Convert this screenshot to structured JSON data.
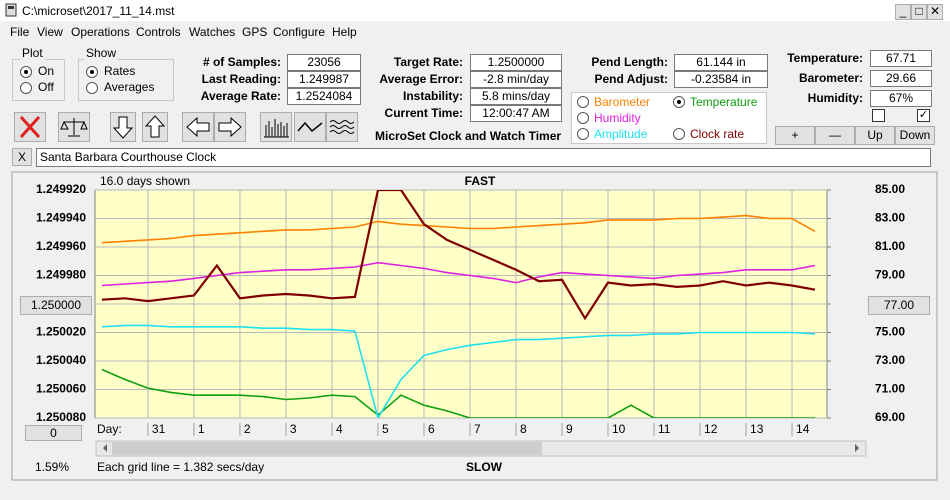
{
  "window": {
    "title": "C:\\microset\\2017_11_14.mst"
  },
  "menu": [
    "File",
    "View",
    "Operations",
    "Controls",
    "Watches",
    "GPS",
    "Configure",
    "Help"
  ],
  "plot_group": {
    "title": "Plot",
    "options": [
      "On",
      "Off"
    ]
  },
  "show_group": {
    "title": "Show",
    "options": [
      "Rates",
      "Averages"
    ]
  },
  "fields": [
    [
      {
        "label": "# of Samples:",
        "value": "23056"
      },
      {
        "label": "Last Reading:",
        "value": "1.249987"
      },
      {
        "label": "Average Rate:",
        "value": "1.2524084"
      }
    ],
    [
      {
        "label": "Target Rate:",
        "value": "1.2500000"
      },
      {
        "label": "Average Error:",
        "value": "-2.8 min/day"
      },
      {
        "label": "Instability:",
        "value": "5.8 mins/day"
      },
      {
        "label": "Current Time:",
        "value": "12:00:47 AM"
      }
    ],
    [
      {
        "label": "Pend Length:",
        "value": "61.144 in"
      },
      {
        "label": "Pend Adjust:",
        "value": "-0.23584 in"
      }
    ],
    [
      {
        "label": "Temperature:",
        "value": "67.71"
      },
      {
        "label": "Barometer:",
        "value": "29.66"
      },
      {
        "label": "Humidity:",
        "value": "67%"
      }
    ]
  ],
  "app_title": "MicroSet Clock and Watch Timer",
  "buttons": [
    "+",
    "—",
    "Up",
    "Down"
  ],
  "close_button": "X",
  "watch_name": "Santa Barbara Courthouse Clock",
  "chart_data": {
    "type": "line",
    "days_shown": "16.0 days shown",
    "top_label": "FAST",
    "bottom_label": "SLOW",
    "footer": "Each grid line = 1.382 secs/day",
    "left_box": "1.250000",
    "right_box": "77.00",
    "zero_box": "0",
    "x_label": "Day:",
    "percent": "1.59%",
    "selected_series": 2,
    "grid": true,
    "y_inverted": true,
    "xlim": [
      -1.15,
      14.76
    ],
    "xticks": [
      {
        "value": 0,
        "label": "31"
      },
      1,
      2,
      3,
      4,
      5,
      6,
      7,
      8,
      9,
      10,
      11,
      12,
      13,
      14
    ],
    "ylim": [
      1.24992,
      1.25008
    ],
    "yticks": [
      {
        "value": 1.24992,
        "label": "1.249920"
      },
      {
        "value": 1.24994,
        "label": "1.249940"
      },
      {
        "value": 1.24996,
        "label": "1.249960"
      },
      {
        "value": 1.24998,
        "label": "1.249980"
      },
      {
        "value": 1.25,
        "label": "1.250000"
      },
      {
        "value": 1.25002,
        "label": "1.250020"
      },
      {
        "value": 1.25004,
        "label": "1.250040"
      },
      {
        "value": 1.25006,
        "label": "1.250060"
      },
      {
        "value": 1.25008,
        "label": "1.250080"
      }
    ],
    "y2lim": [
      69,
      85
    ],
    "y2ticks": [
      {
        "value": 85,
        "label": "85.00"
      },
      {
        "value": 83,
        "label": "83.00"
      },
      {
        "value": 81,
        "label": "81.00"
      },
      {
        "value": 79,
        "label": "79.00"
      },
      {
        "value": 77,
        "label": "77.00"
      },
      {
        "value": 75,
        "label": "75.00"
      },
      {
        "value": 73,
        "label": "73.00"
      },
      {
        "value": 71,
        "label": "71.00"
      },
      {
        "value": 69,
        "label": "69.00"
      }
    ],
    "x": [
      -1,
      -0.5,
      0,
      0.5,
      1,
      1.5,
      2,
      2.5,
      3,
      3.5,
      4,
      4.5,
      5,
      5.5,
      6,
      6.5,
      7,
      7.5,
      8,
      8.5,
      9,
      9.5,
      10,
      10.5,
      11,
      11.5,
      12,
      12.5,
      13,
      13.5,
      14,
      14.5
    ],
    "series": [
      {
        "name": "Barometer",
        "color": "#ff8000",
        "axis": "y2",
        "values": [
          81.3,
          81.4,
          81.5,
          81.6,
          81.8,
          81.9,
          82.0,
          82.1,
          82.2,
          82.2,
          82.3,
          82.4,
          82.8,
          82.6,
          82.5,
          82.4,
          82.3,
          82.3,
          82.4,
          82.5,
          82.6,
          82.7,
          82.9,
          82.9,
          82.9,
          83.0,
          83.0,
          83.1,
          83.2,
          83.0,
          83.0,
          82.1
        ]
      },
      {
        "name": "Humidity",
        "color": "#e020e0",
        "axis": "y2",
        "values": [
          78.3,
          78.4,
          78.5,
          78.6,
          78.8,
          79.0,
          79.2,
          79.3,
          79.4,
          79.4,
          79.5,
          79.6,
          79.9,
          79.7,
          79.5,
          79.2,
          79.0,
          78.8,
          78.5,
          78.9,
          79.2,
          79.1,
          79.0,
          78.9,
          78.8,
          79.0,
          79.1,
          79.2,
          79.4,
          79.4,
          79.4,
          79.7
        ]
      },
      {
        "name": "Temperature",
        "color": "#10a010",
        "axis": "y2",
        "values": [
          72.4,
          71.7,
          71.1,
          70.8,
          70.6,
          70.6,
          70.6,
          70.5,
          70.3,
          70.4,
          70.6,
          70.5,
          69.2,
          70.6,
          69.9,
          69.5,
          69.0,
          69.0,
          69.0,
          69.0,
          69.0,
          69.0,
          69.0,
          69.9,
          69.0,
          69.0,
          69.0,
          69.0,
          69.0,
          69.0,
          69.0,
          69.0
        ]
      },
      {
        "name": "Amplitude",
        "color": "#20e0f0",
        "axis": "y2",
        "values": [
          75.4,
          75.5,
          75.5,
          75.4,
          75.4,
          75.4,
          75.4,
          75.3,
          75.3,
          75.2,
          75.2,
          75.1,
          69.0,
          71.7,
          73.4,
          73.8,
          74.1,
          74.3,
          74.5,
          74.5,
          74.6,
          74.7,
          74.8,
          74.8,
          74.9,
          74.9,
          75.0,
          75.0,
          75.0,
          75.0,
          75.0,
          74.9
        ]
      },
      {
        "name": "Clock rate",
        "color": "#800000",
        "axis": "y",
        "values": [
          1.249997,
          1.249996,
          1.249998,
          1.249996,
          1.249994,
          1.249973,
          1.249996,
          1.249994,
          1.249993,
          1.249994,
          1.249996,
          1.249995,
          1.24992,
          1.24992,
          1.249944,
          1.249955,
          1.249962,
          1.249969,
          1.249976,
          1.249984,
          1.249983,
          1.25001,
          1.249985,
          1.249987,
          1.249986,
          1.249988,
          1.249987,
          1.249984,
          1.249987,
          1.249985,
          1.249987,
          1.24999
        ]
      }
    ]
  }
}
